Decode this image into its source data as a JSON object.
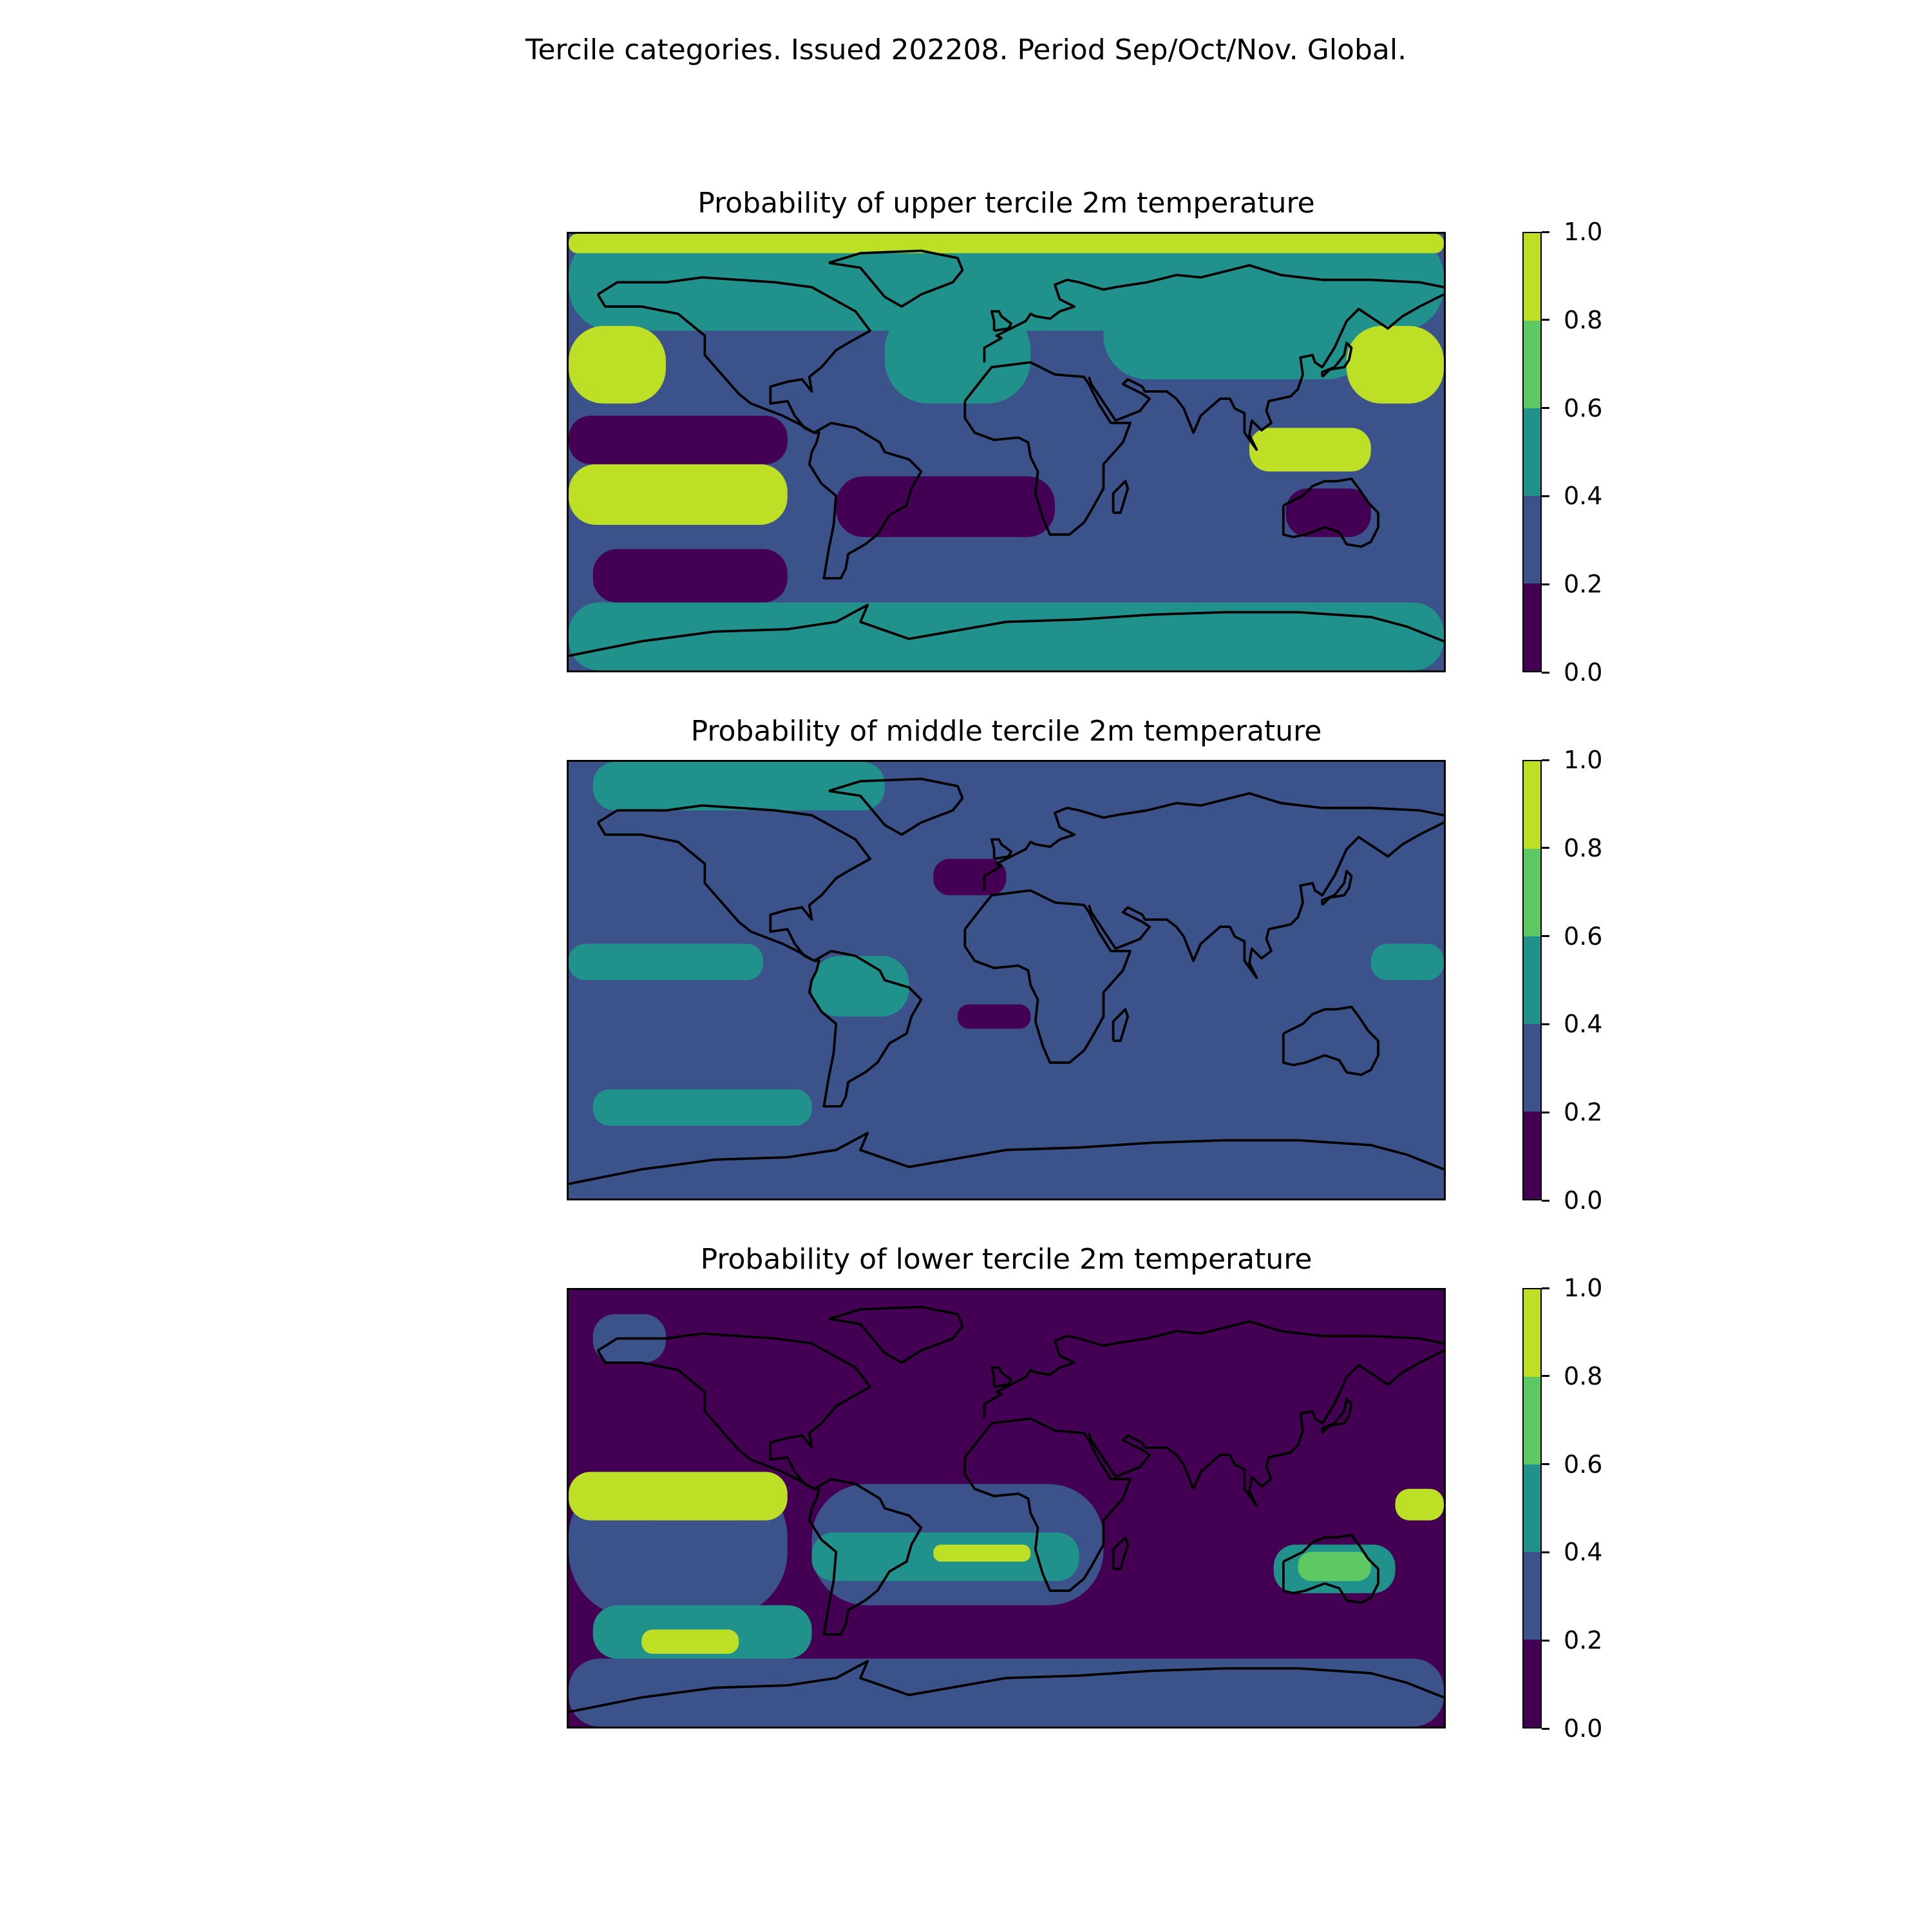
{
  "figure_title": "Tercile categories. Issued 202208. Period Sep/Oct/Nov. Global.",
  "colors": [
    "#440154",
    "#3b528b",
    "#21918c",
    "#5ec962",
    "#bddf26"
  ],
  "colorbar_ticks": [
    "0.0",
    "0.2",
    "0.4",
    "0.6",
    "0.8",
    "1.0"
  ],
  "panels": [
    {
      "title": "Probability of upper tercile 2m temperature",
      "background": "#3b528b",
      "regions": [
        {
          "c": "#21918c",
          "lon": [
            -180,
            180
          ],
          "lat": [
            50,
            90
          ]
        },
        {
          "c": "#21918c",
          "lon": [
            40,
            150
          ],
          "lat": [
            30,
            70
          ]
        },
        {
          "c": "#21918c",
          "lon": [
            -50,
            10
          ],
          "lat": [
            20,
            60
          ]
        },
        {
          "c": "#21918c",
          "lon": [
            -180,
            180
          ],
          "lat": [
            -90,
            -62
          ]
        },
        {
          "c": "#bddf26",
          "lon": [
            -180,
            180
          ],
          "lat": [
            82,
            90
          ]
        },
        {
          "c": "#bddf26",
          "lon": [
            -180,
            -140
          ],
          "lat": [
            20,
            52
          ]
        },
        {
          "c": "#bddf26",
          "lon": [
            140,
            180
          ],
          "lat": [
            20,
            52
          ]
        },
        {
          "c": "#bddf26",
          "lon": [
            -180,
            -90
          ],
          "lat": [
            -30,
            -5
          ]
        },
        {
          "c": "#bddf26",
          "lon": [
            100,
            150
          ],
          "lat": [
            -8,
            10
          ]
        },
        {
          "c": "#440154",
          "lon": [
            -180,
            -90
          ],
          "lat": [
            -5,
            15
          ]
        },
        {
          "c": "#440154",
          "lon": [
            -170,
            -90
          ],
          "lat": [
            -62,
            -40
          ]
        },
        {
          "c": "#440154",
          "lon": [
            -70,
            20
          ],
          "lat": [
            -35,
            -10
          ]
        },
        {
          "c": "#440154",
          "lon": [
            115,
            150
          ],
          "lat": [
            -35,
            -15
          ]
        }
      ]
    },
    {
      "title": "Probability of middle tercile 2m temperature",
      "background": "#3b528b",
      "regions": [
        {
          "c": "#21918c",
          "lon": [
            -180,
            -100
          ],
          "lat": [
            0,
            15
          ]
        },
        {
          "c": "#21918c",
          "lon": [
            -80,
            -40
          ],
          "lat": [
            -15,
            10
          ]
        },
        {
          "c": "#21918c",
          "lon": [
            -170,
            -80
          ],
          "lat": [
            -60,
            -45
          ]
        },
        {
          "c": "#21918c",
          "lon": [
            150,
            180
          ],
          "lat": [
            0,
            15
          ]
        },
        {
          "c": "#21918c",
          "lon": [
            -170,
            -50
          ],
          "lat": [
            70,
            90
          ]
        },
        {
          "c": "#440154",
          "lon": [
            -30,
            0
          ],
          "lat": [
            35,
            50
          ]
        },
        {
          "c": "#440154",
          "lon": [
            -20,
            10
          ],
          "lat": [
            -20,
            -10
          ]
        }
      ]
    },
    {
      "title": "Probability of lower tercile 2m temperature",
      "background": "#440154",
      "regions": [
        {
          "c": "#3b528b",
          "lon": [
            -180,
            180
          ],
          "lat": [
            -90,
            -62
          ]
        },
        {
          "c": "#3b528b",
          "lon": [
            -180,
            -90
          ],
          "lat": [
            -45,
            15
          ]
        },
        {
          "c": "#3b528b",
          "lon": [
            -80,
            40
          ],
          "lat": [
            -40,
            10
          ]
        },
        {
          "c": "#3b528b",
          "lon": [
            -170,
            -140
          ],
          "lat": [
            60,
            80
          ]
        },
        {
          "c": "#21918c",
          "lon": [
            -170,
            -80
          ],
          "lat": [
            -62,
            -40
          ]
        },
        {
          "c": "#21918c",
          "lon": [
            -80,
            30
          ],
          "lat": [
            -30,
            -10
          ]
        },
        {
          "c": "#21918c",
          "lon": [
            110,
            160
          ],
          "lat": [
            -35,
            -15
          ]
        },
        {
          "c": "#bddf26",
          "lon": [
            -180,
            -90
          ],
          "lat": [
            -5,
            15
          ]
        },
        {
          "c": "#bddf26",
          "lon": [
            -30,
            10
          ],
          "lat": [
            -22,
            -15
          ]
        },
        {
          "c": "#bddf26",
          "lon": [
            -150,
            -110
          ],
          "lat": [
            -60,
            -50
          ]
        },
        {
          "c": "#bddf26",
          "lon": [
            160,
            180
          ],
          "lat": [
            -5,
            8
          ]
        },
        {
          "c": "#5ec962",
          "lon": [
            120,
            150
          ],
          "lat": [
            -30,
            -18
          ]
        }
      ]
    }
  ]
}
